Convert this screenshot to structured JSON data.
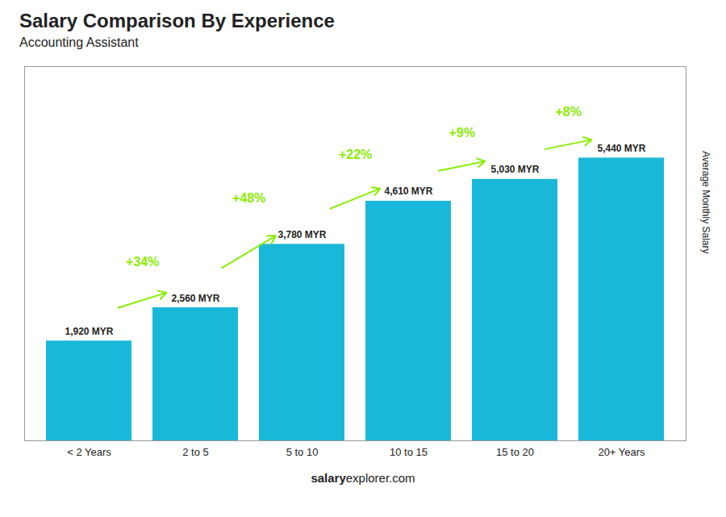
{
  "chart_data": {
    "type": "bar",
    "title": "Salary Comparison By Experience",
    "subtitle": "Accounting Assistant",
    "ylabel": "Average Monthly Salary",
    "categories": [
      "< 2 Years",
      "2 to 5",
      "5 to 10",
      "10 to 15",
      "15 to 20",
      "20+ Years"
    ],
    "values": [
      1920,
      2560,
      3780,
      4610,
      5030,
      5440
    ],
    "value_labels": [
      "1,920 MYR",
      "2,560 MYR",
      "3,780 MYR",
      "4,610 MYR",
      "5,030 MYR",
      "5,440 MYR"
    ],
    "data_labels": true,
    "color": "#1ab8d8",
    "ylim": [
      0,
      7200
    ],
    "tick_labels": "x",
    "grid": false,
    "annotations": [
      {
        "text": "+34%",
        "from": "< 2 Years",
        "to": "2 to 5",
        "color": "#88ee00"
      },
      {
        "text": "+48%",
        "from": "2 to 5",
        "to": "5 to 10",
        "color": "#88ee00"
      },
      {
        "text": "+22%",
        "from": "5 to 10",
        "to": "10 to 15",
        "color": "#88ee00"
      },
      {
        "text": "+9%",
        "from": "10 to 15",
        "to": "15 to 20",
        "color": "#88ee00"
      },
      {
        "text": "+8%",
        "from": "15 to 20",
        "to": "20+ Years",
        "color": "#88ee00"
      }
    ],
    "footer": [
      "salary",
      "explorer.com"
    ]
  }
}
